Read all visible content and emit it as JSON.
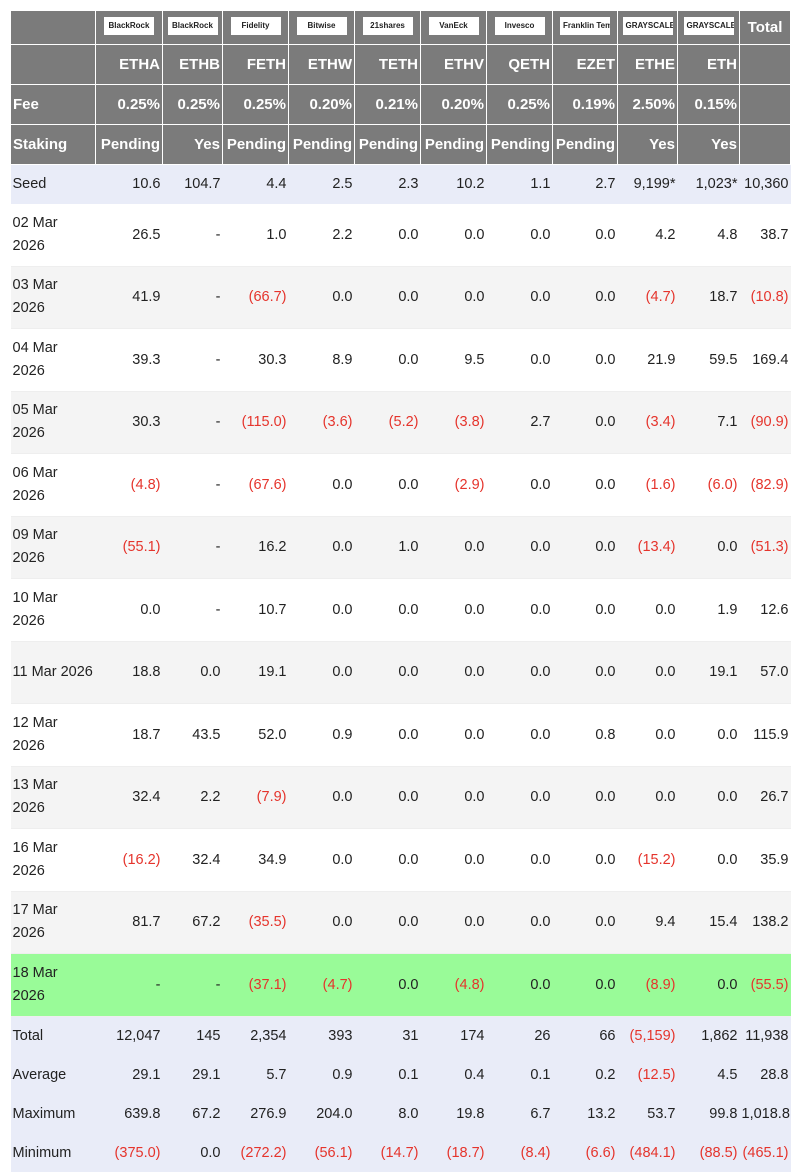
{
  "colors": {
    "header_bg": "#7b7b7b",
    "summary_bg": "#e9ecf8",
    "highlight_row": "#99fb98",
    "negative": "#e5342c"
  },
  "header": {
    "logos": [
      "BlackRock",
      "BlackRock",
      "Fidelity",
      "Bitwise",
      "21shares",
      "VanEck",
      "Invesco",
      "Franklin Templeton",
      "GRAYSCALE",
      "GRAYSCALE"
    ],
    "total_label": "Total",
    "tickers": [
      "ETHA",
      "ETHB",
      "FETH",
      "ETHW",
      "TETH",
      "ETHV",
      "QETH",
      "EZET",
      "ETHE",
      "ETH"
    ],
    "fee_label": "Fee",
    "fees": [
      "0.25%",
      "0.25%",
      "0.25%",
      "0.20%",
      "0.21%",
      "0.20%",
      "0.25%",
      "0.19%",
      "2.50%",
      "0.15%"
    ],
    "staking_label": "Staking",
    "staking": [
      "Pending",
      "Yes",
      "Pending",
      "Pending",
      "Pending",
      "Pending",
      "Pending",
      "Pending",
      "Yes",
      "Yes"
    ]
  },
  "seed": {
    "label": "Seed",
    "values": [
      "10.6",
      "104.7",
      "4.4",
      "2.5",
      "2.3",
      "10.2",
      "1.1",
      "2.7",
      "9,199*",
      "1,023*",
      "10,360"
    ]
  },
  "rows": [
    {
      "date": "02 Mar 2026",
      "values": [
        "26.5",
        "-",
        "1.0",
        "2.2",
        "0.0",
        "0.0",
        "0.0",
        "0.0",
        "4.2",
        "4.8",
        "38.7"
      ]
    },
    {
      "date": "03 Mar 2026",
      "values": [
        "41.9",
        "-",
        "(66.7)",
        "0.0",
        "0.0",
        "0.0",
        "0.0",
        "0.0",
        "(4.7)",
        "18.7",
        "(10.8)"
      ]
    },
    {
      "date": "04 Mar 2026",
      "values": [
        "39.3",
        "-",
        "30.3",
        "8.9",
        "0.0",
        "9.5",
        "0.0",
        "0.0",
        "21.9",
        "59.5",
        "169.4"
      ]
    },
    {
      "date": "05 Mar 2026",
      "values": [
        "30.3",
        "-",
        "(115.0)",
        "(3.6)",
        "(5.2)",
        "(3.8)",
        "2.7",
        "0.0",
        "(3.4)",
        "7.1",
        "(90.9)"
      ]
    },
    {
      "date": "06 Mar 2026",
      "values": [
        "(4.8)",
        "-",
        "(67.6)",
        "0.0",
        "0.0",
        "(2.9)",
        "0.0",
        "0.0",
        "(1.6)",
        "(6.0)",
        "(82.9)"
      ]
    },
    {
      "date": "09 Mar 2026",
      "values": [
        "(55.1)",
        "-",
        "16.2",
        "0.0",
        "1.0",
        "0.0",
        "0.0",
        "0.0",
        "(13.4)",
        "0.0",
        "(51.3)"
      ]
    },
    {
      "date": "10 Mar 2026",
      "values": [
        "0.0",
        "-",
        "10.7",
        "0.0",
        "0.0",
        "0.0",
        "0.0",
        "0.0",
        "0.0",
        "1.9",
        "12.6"
      ]
    },
    {
      "date": "11 Mar 2026",
      "values": [
        "18.8",
        "0.0",
        "19.1",
        "0.0",
        "0.0",
        "0.0",
        "0.0",
        "0.0",
        "0.0",
        "19.1",
        "57.0"
      ]
    },
    {
      "date": "12 Mar 2026",
      "values": [
        "18.7",
        "43.5",
        "52.0",
        "0.9",
        "0.0",
        "0.0",
        "0.0",
        "0.8",
        "0.0",
        "0.0",
        "115.9"
      ]
    },
    {
      "date": "13 Mar 2026",
      "values": [
        "32.4",
        "2.2",
        "(7.9)",
        "0.0",
        "0.0",
        "0.0",
        "0.0",
        "0.0",
        "0.0",
        "0.0",
        "26.7"
      ]
    },
    {
      "date": "16 Mar 2026",
      "values": [
        "(16.2)",
        "32.4",
        "34.9",
        "0.0",
        "0.0",
        "0.0",
        "0.0",
        "0.0",
        "(15.2)",
        "0.0",
        "35.9"
      ]
    },
    {
      "date": "17 Mar 2026",
      "values": [
        "81.7",
        "67.2",
        "(35.5)",
        "0.0",
        "0.0",
        "0.0",
        "0.0",
        "0.0",
        "9.4",
        "15.4",
        "138.2"
      ]
    },
    {
      "date": "18 Mar 2026",
      "highlight": true,
      "values": [
        "-",
        "-",
        "(37.1)",
        "(4.7)",
        "0.0",
        "(4.8)",
        "0.0",
        "0.0",
        "(8.9)",
        "0.0",
        "(55.5)"
      ]
    }
  ],
  "summary": [
    {
      "label": "Total",
      "values": [
        "12,047",
        "145",
        "2,354",
        "393",
        "31",
        "174",
        "26",
        "66",
        "(5,159)",
        "1,862",
        "11,938"
      ]
    },
    {
      "label": "Average",
      "values": [
        "29.1",
        "29.1",
        "5.7",
        "0.9",
        "0.1",
        "0.4",
        "0.1",
        "0.2",
        "(12.5)",
        "4.5",
        "28.8"
      ]
    },
    {
      "label": "Maximum",
      "values": [
        "639.8",
        "67.2",
        "276.9",
        "204.0",
        "8.0",
        "19.8",
        "6.7",
        "13.2",
        "53.7",
        "99.8",
        "1,018.8"
      ]
    },
    {
      "label": "Minimum",
      "values": [
        "(375.0)",
        "0.0",
        "(272.2)",
        "(56.1)",
        "(14.7)",
        "(18.7)",
        "(8.4)",
        "(6.6)",
        "(484.1)",
        "(88.5)",
        "(465.1)"
      ]
    }
  ]
}
